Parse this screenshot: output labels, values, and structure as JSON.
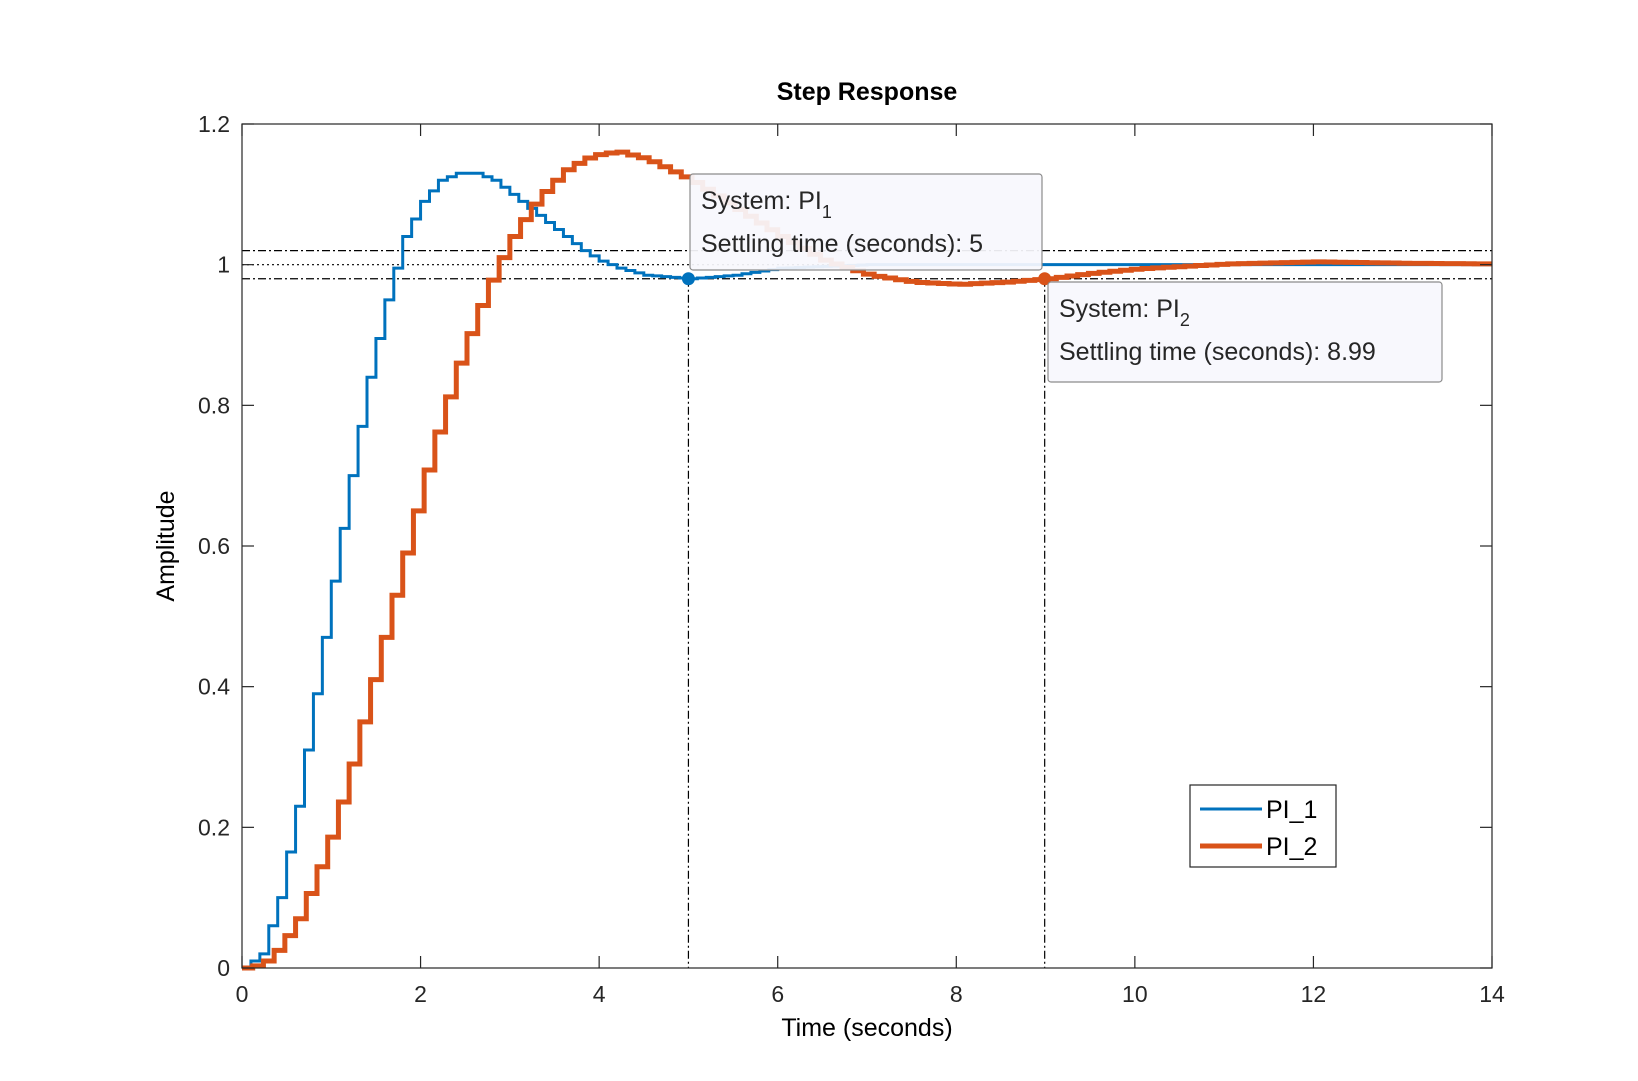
{
  "chart_data": {
    "type": "line",
    "title": "Step Response",
    "xlabel": "Time (seconds)",
    "ylabel": "Amplitude",
    "xlim": [
      0,
      14
    ],
    "ylim": [
      0,
      1.2
    ],
    "xticks": [
      0,
      2,
      4,
      6,
      8,
      10,
      12,
      14
    ],
    "xtick_labels": [
      "0",
      "2",
      "4",
      "6",
      "8",
      "10",
      "12",
      "14"
    ],
    "yticks": [
      0,
      0.2,
      0.4,
      0.6,
      0.8,
      1,
      1.2
    ],
    "ytick_labels": [
      "0",
      "0.2",
      "0.4",
      "0.6",
      "0.8",
      "1",
      "1.2"
    ],
    "grid": false,
    "legend_position": "bottom-right",
    "reference_lines": {
      "final_value": 1.0,
      "upper_band": 1.02,
      "lower_band": 0.98
    },
    "series": [
      {
        "name": "PI_1",
        "color": "#0072BD",
        "step": 0.1,
        "x": [
          0,
          0.2,
          0.4,
          0.6,
          0.8,
          1.0,
          1.2,
          1.4,
          1.6,
          1.8,
          2.0,
          2.2,
          2.4,
          2.6,
          2.8,
          3.0,
          3.2,
          3.4,
          3.6,
          3.8,
          4.0,
          4.2,
          4.5,
          5.0,
          5.5,
          6.0,
          7.0,
          8.0,
          10.0,
          12.0,
          14.0
        ],
        "y": [
          0,
          0.02,
          0.1,
          0.23,
          0.39,
          0.55,
          0.7,
          0.84,
          0.95,
          1.04,
          1.09,
          1.12,
          1.13,
          1.13,
          1.12,
          1.1,
          1.08,
          1.06,
          1.04,
          1.02,
          1.005,
          0.995,
          0.985,
          0.98,
          0.985,
          0.995,
          1.0,
          1.0,
          1.0,
          1.0,
          1.0
        ]
      },
      {
        "name": "PI_2",
        "color": "#D95319",
        "step": 0.12,
        "x": [
          0,
          0.2,
          0.4,
          0.6,
          0.8,
          1.0,
          1.2,
          1.4,
          1.6,
          1.8,
          2.0,
          2.2,
          2.4,
          2.6,
          2.8,
          3.0,
          3.2,
          3.4,
          3.6,
          3.8,
          4.0,
          4.2,
          4.5,
          5.0,
          5.5,
          6.0,
          6.5,
          7.0,
          7.5,
          8.0,
          8.5,
          9.0,
          9.5,
          10.0,
          11.0,
          12.0,
          13.0,
          14.0
        ],
        "y": [
          0,
          0.005,
          0.03,
          0.07,
          0.13,
          0.2,
          0.29,
          0.39,
          0.49,
          0.59,
          0.69,
          0.78,
          0.86,
          0.93,
          0.99,
          1.04,
          1.08,
          1.11,
          1.135,
          1.15,
          1.158,
          1.16,
          1.15,
          1.12,
          1.08,
          1.04,
          1.005,
          0.985,
          0.975,
          0.972,
          0.975,
          0.98,
          0.988,
          0.994,
          1.001,
          1.004,
          1.002,
          1.001
        ]
      }
    ],
    "annotations": [
      {
        "system_label": "System: PI",
        "subscript": "1",
        "detail": "Settling time (seconds): 5",
        "x": 5.0,
        "y": 0.98,
        "color": "#0072BD"
      },
      {
        "system_label": "System: PI",
        "subscript": "2",
        "detail": "Settling time (seconds): 8.99",
        "x": 8.99,
        "y": 0.98,
        "color": "#D95319"
      }
    ]
  }
}
